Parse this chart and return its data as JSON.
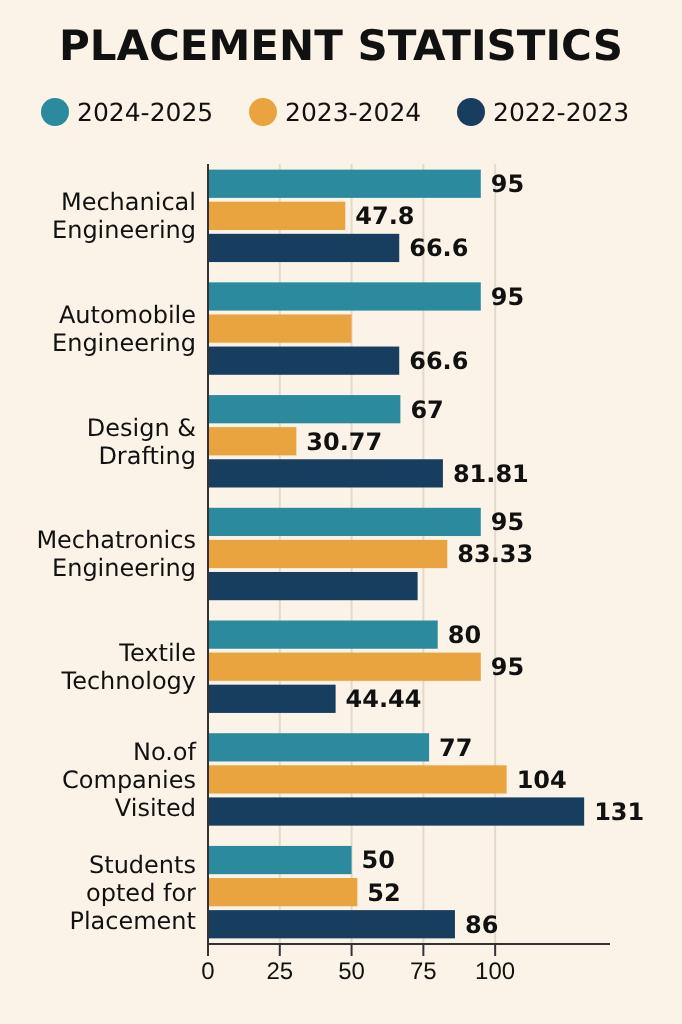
{
  "chart_data": {
    "type": "bar",
    "orientation": "horizontal",
    "title": "PLACEMENT STATISTICS",
    "categories": [
      "Mechanical Engineering",
      "Automobile Engineering",
      "Design & Drafting",
      "Mechatronics Engineering",
      "Textile Technology",
      "No.of Companies Visited",
      "Students opted for Placement"
    ],
    "series": [
      {
        "name": "2024-2025",
        "color": "#2b8a9e",
        "values": [
          95,
          95,
          67,
          95,
          80,
          77,
          50
        ],
        "value_labels": [
          "95",
          "95",
          "67",
          "95",
          "80",
          "77",
          "50"
        ]
      },
      {
        "name": "2023-2024",
        "color": "#e9a43f",
        "values": [
          47.8,
          50,
          30.77,
          83.33,
          95,
          104,
          52
        ],
        "value_labels": [
          "47.8",
          null,
          "30.77",
          "83.33",
          "95",
          "104",
          "52"
        ]
      },
      {
        "name": "2022-2023",
        "color": "#173e5f",
        "values": [
          66.6,
          66.6,
          81.81,
          73,
          44.44,
          131,
          86
        ],
        "value_labels": [
          "66.6",
          "66.6",
          "81.81",
          null,
          "44.44",
          "131",
          "86"
        ]
      }
    ],
    "xlim": [
      0,
      140
    ],
    "xticks": [
      0,
      25,
      50,
      75,
      100
    ],
    "grid": "x",
    "legend": "top"
  }
}
